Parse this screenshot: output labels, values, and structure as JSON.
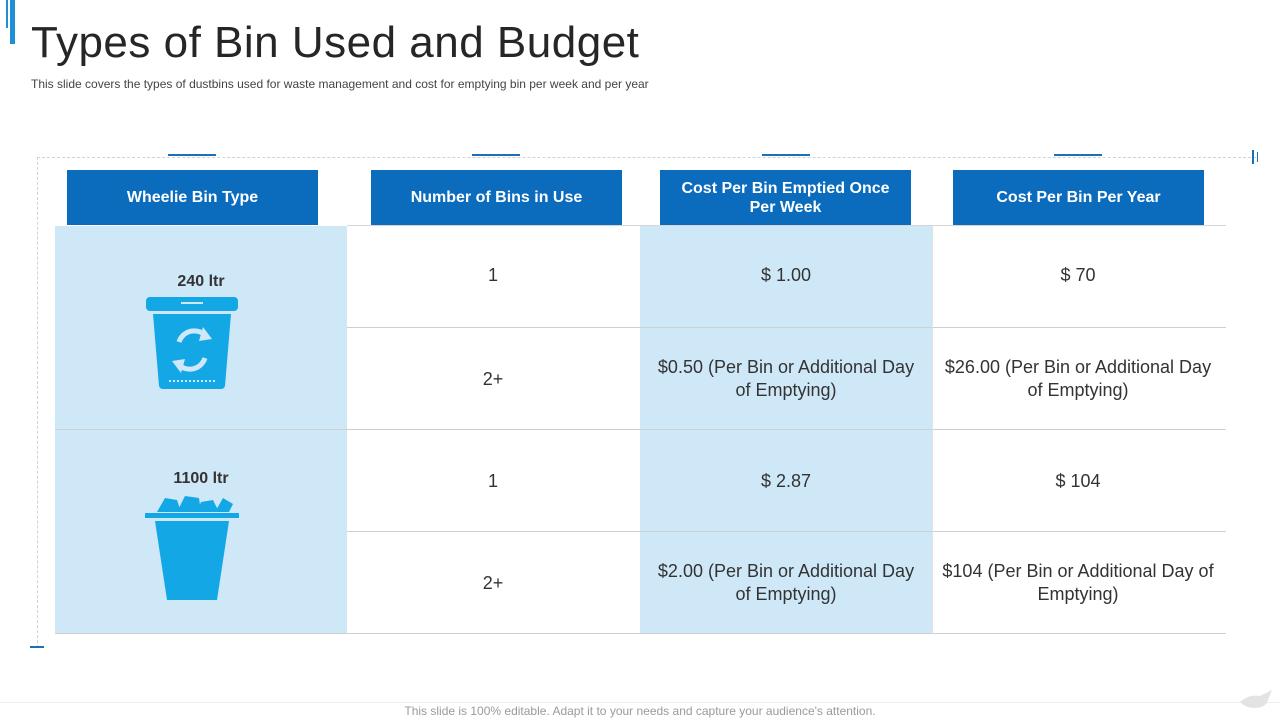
{
  "slide": {
    "title": "Types of Bin Used and Budget",
    "subtitle": "This slide covers the types of dustbins used for waste management  and cost for emptying bin per week and per year",
    "footer": "This slide is 100% editable. Adapt it to your needs and capture your audience's attention."
  },
  "table": {
    "headers": [
      "Wheelie Bin Type",
      "Number of Bins in Use",
      "Cost Per Bin Emptied Once Per Week",
      "Cost  Per Bin Per Year"
    ],
    "groups": [
      {
        "bin_type": "240 ltr",
        "icon": "recycle-bin-icon",
        "rows": [
          {
            "count": "1",
            "weekly": "$ 1.00",
            "yearly": "$ 70"
          },
          {
            "count": "2+",
            "weekly": "$0.50 (Per Bin or Additional Day of Emptying)",
            "yearly": "$26.00 (Per Bin or Additional Day of Emptying)"
          }
        ]
      },
      {
        "bin_type": "1100 ltr",
        "icon": "overflowing-bin-icon",
        "rows": [
          {
            "count": "1",
            "weekly": "$ 2.87",
            "yearly": "$ 104"
          },
          {
            "count": "2+",
            "weekly": "$2.00 (Per Bin or Additional Day of Emptying)",
            "yearly": "$104 (Per Bin or Additional Day of Emptying)"
          }
        ]
      }
    ]
  },
  "colors": {
    "header_blue": "#0b6bbd",
    "light_blue_column": "#cfe8f8",
    "icon_blue": "#14a7e6"
  }
}
